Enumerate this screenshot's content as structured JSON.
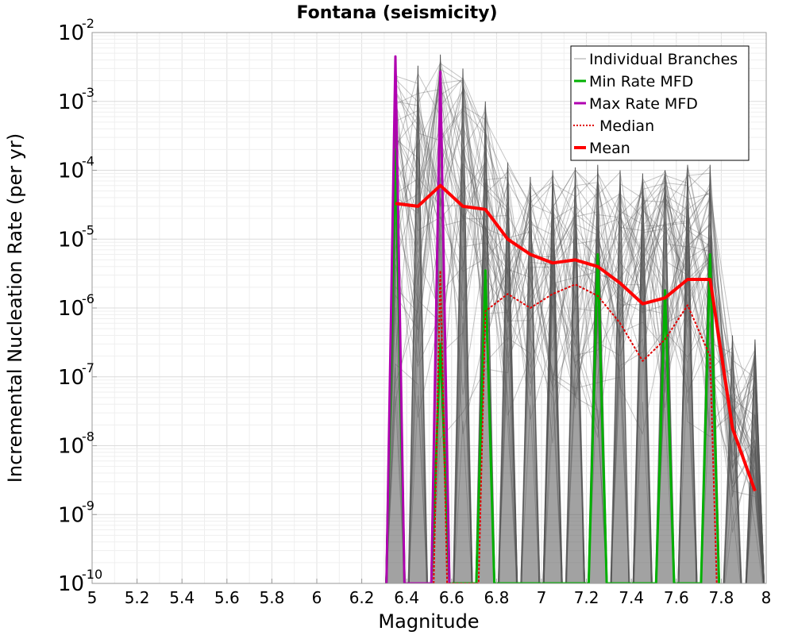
{
  "chart_data": {
    "type": "line",
    "title": "Fontana (seismicity)",
    "xlabel": "Magnitude",
    "ylabel": "Incremental Nucleation Rate (per yr)",
    "xlim": [
      5,
      8
    ],
    "ylim": [
      1e-10,
      0.01
    ],
    "yscale": "log",
    "grid": true,
    "legend_position": "top-right",
    "x_ticks": [
      "5",
      "5.2",
      "5.4",
      "5.6",
      "5.8",
      "6",
      "6.2",
      "6.4",
      "6.6",
      "6.8",
      "7",
      "7.2",
      "7.4",
      "7.6",
      "7.8",
      "8"
    ],
    "y_ticks": [
      {
        "base": "10",
        "exp": "-10",
        "value": 1e-10
      },
      {
        "base": "10",
        "exp": "-9",
        "value": 1e-09
      },
      {
        "base": "10",
        "exp": "-8",
        "value": 1e-08
      },
      {
        "base": "10",
        "exp": "-7",
        "value": 1e-07
      },
      {
        "base": "10",
        "exp": "-6",
        "value": 1e-06
      },
      {
        "base": "10",
        "exp": "-5",
        "value": 1e-05
      },
      {
        "base": "10",
        "exp": "-4",
        "value": 0.0001
      },
      {
        "base": "10",
        "exp": "-3",
        "value": 0.001
      },
      {
        "base": "10",
        "exp": "-2",
        "value": 0.01
      }
    ],
    "legend": [
      {
        "label": "Individual Branches",
        "color": "#a0a0a0",
        "style": "thin"
      },
      {
        "label": "Min Rate MFD",
        "color": "#00b000",
        "style": "solid"
      },
      {
        "label": "Max Rate MFD",
        "color": "#b000b0",
        "style": "solid"
      },
      {
        "label": "Median",
        "color": "#e00000",
        "style": "dotted"
      },
      {
        "label": "Mean",
        "color": "#ff0000",
        "style": "thick"
      }
    ],
    "series": [
      {
        "name": "Mean",
        "color": "#ff0000",
        "x": [
          6.35,
          6.45,
          6.55,
          6.65,
          6.75,
          6.85,
          6.95,
          7.05,
          7.15,
          7.25,
          7.35,
          7.45,
          7.55,
          7.65,
          7.75,
          7.85,
          7.95
        ],
        "values": [
          3.3e-05,
          3e-05,
          6e-05,
          3e-05,
          2.7e-05,
          1e-05,
          6e-06,
          4.5e-06,
          5e-06,
          4e-06,
          2.3e-06,
          1.15e-06,
          1.4e-06,
          2.6e-06,
          2.6e-06,
          1.8e-08,
          2.2e-09
        ]
      },
      {
        "name": "Median",
        "color": "#e00000",
        "x": [
          6.52,
          6.55,
          6.58,
          6.72,
          6.75,
          6.85,
          6.95,
          7.05,
          7.15,
          7.25,
          7.35,
          7.45,
          7.55,
          7.65,
          7.75,
          7.78
        ],
        "values": [
          1e-10,
          3.5e-06,
          1e-10,
          1e-10,
          9e-07,
          1.6e-06,
          1e-06,
          1.6e-06,
          2.2e-06,
          1.5e-06,
          6e-07,
          1.7e-07,
          3.5e-07,
          1.1e-06,
          2e-07,
          1e-10
        ]
      },
      {
        "name": "Min Rate MFD",
        "color": "#00b000",
        "x": [
          6.31,
          6.35,
          6.39,
          6.51,
          6.55,
          6.59,
          6.71,
          6.75,
          6.79,
          7.21,
          7.25,
          7.29,
          7.51,
          7.55,
          7.59,
          7.71,
          7.75,
          7.79
        ],
        "values": [
          1e-10,
          0.0002,
          1e-10,
          1e-10,
          3e-07,
          1e-10,
          1e-10,
          3.5e-06,
          1e-10,
          1e-10,
          6e-06,
          1e-10,
          1e-10,
          1.8e-06,
          1e-10,
          1e-10,
          6e-06,
          1e-10
        ]
      },
      {
        "name": "Max Rate MFD",
        "color": "#b000b0",
        "x": [
          6.31,
          6.35,
          6.39,
          6.51,
          6.55,
          6.59
        ],
        "values": [
          1e-10,
          0.0045,
          1e-10,
          1e-10,
          0.0027,
          1e-10
        ]
      }
    ],
    "branch_envelope": {
      "name": "Individual Branches",
      "x": [
        6.35,
        6.45,
        6.55,
        6.65,
        6.75,
        6.85,
        6.95,
        7.05,
        7.15,
        7.25,
        7.35,
        7.45,
        7.55,
        7.65,
        7.75,
        7.85,
        7.95
      ],
      "max": [
        0.0045,
        0.0033,
        0.0048,
        0.003,
        0.001,
        0.00013,
        8e-05,
        0.0001,
        0.00011,
        0.00012,
        0.0001,
        9e-05,
        0.0001,
        0.00012,
        0.00012,
        4e-07,
        3.5e-07
      ]
    }
  }
}
